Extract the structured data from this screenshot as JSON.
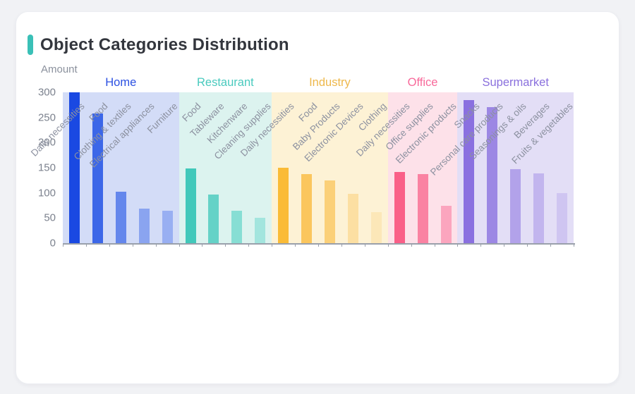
{
  "card": {
    "title": "Object Categories Distribution",
    "accent_color": "#3ac0b7",
    "y_axis_name": "Amount"
  },
  "axis": {
    "line_color": "#9aa0ab",
    "tick_color": "#9aa0ab"
  },
  "chart_data": {
    "type": "bar",
    "title": "Object Categories Distribution",
    "xlabel": "",
    "ylabel": "Amount",
    "ylim": [
      0,
      300
    ],
    "y_ticks": [
      0,
      50,
      100,
      150,
      200,
      250,
      300
    ],
    "grid": false,
    "legend_position": "top-group-headers",
    "groups": [
      {
        "name": "Home",
        "header_color": "#2b50e2",
        "band_color": "#d3dcf7",
        "categories": [
          "Daily necessities",
          "Food",
          "Clothing & textiles",
          "Electrical appliances",
          "Furniture"
        ],
        "values": [
          300,
          258,
          102,
          69,
          64
        ],
        "bar_colors": [
          "#1a49e2",
          "#3c67e8",
          "#6487ec",
          "#8aa4f0",
          "#98aff2"
        ]
      },
      {
        "name": "Restaurant",
        "header_color": "#49cabe",
        "band_color": "#dcf3ef",
        "categories": [
          "Food",
          "Tableware",
          "Kitchenware",
          "Cleaning supplies"
        ],
        "values": [
          148,
          97,
          65,
          51
        ],
        "bar_colors": [
          "#41c8ba",
          "#65d2c7",
          "#87ded4",
          "#a3e5de"
        ]
      },
      {
        "name": "Industry",
        "header_color": "#eeb84b",
        "band_color": "#fdf2d5",
        "categories": [
          "Daily necessities",
          "Food",
          "Baby Products",
          "Electronic Devices",
          "Clothing"
        ],
        "values": [
          150,
          138,
          125,
          98,
          62
        ],
        "bar_colors": [
          "#fabb37",
          "#fbc65d",
          "#fbd078",
          "#fcdfa2",
          "#fce7b8"
        ]
      },
      {
        "name": "Office",
        "header_color": "#f8699a",
        "band_color": "#fde1e9",
        "categories": [
          "Daily necessities",
          "Office supplies",
          "Electronic products"
        ],
        "values": [
          141,
          138,
          74
        ],
        "bar_colors": [
          "#fa5f88",
          "#fa82a2",
          "#fba5be"
        ]
      },
      {
        "name": "Supermarket",
        "header_color": "#8a70dd",
        "band_color": "#e3def6",
        "categories": [
          "Snacks",
          "Personal care products",
          "Seasonings & oils",
          "Beverages",
          "Fruits & vegetables"
        ],
        "values": [
          284,
          270,
          147,
          139,
          100
        ],
        "bar_colors": [
          "#8a70e0",
          "#9c87e4",
          "#b2a2ea",
          "#c2b5ee",
          "#cfc5f1"
        ]
      }
    ]
  }
}
